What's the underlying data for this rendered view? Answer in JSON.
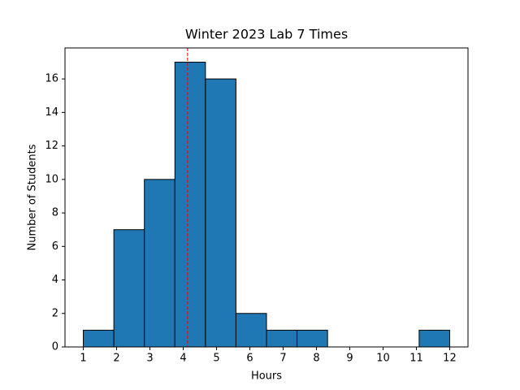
{
  "chart_data": {
    "type": "histogram",
    "title": "Winter 2023 Lab 7 Times",
    "xlabel": "Hours",
    "ylabel": "Number of Students",
    "bins": [
      1,
      1.9167,
      2.8333,
      3.75,
      4.6667,
      5.5833,
      6.5,
      7.4167,
      8.3333,
      9.25,
      10.1667,
      11.0833,
      12
    ],
    "values": [
      1,
      7,
      10,
      17,
      16,
      2,
      1,
      1,
      0,
      0,
      0,
      1
    ],
    "color": "#1f77b4",
    "edgecolor": "#000000",
    "vline": {
      "value": 4.13,
      "color": "#ff0000"
    },
    "xlim": [
      0.45,
      12.55
    ],
    "ylim": [
      0,
      17.85
    ],
    "xticks": [
      1,
      2,
      3,
      4,
      5,
      6,
      7,
      8,
      9,
      10,
      11,
      12
    ],
    "yticks": [
      0,
      2,
      4,
      6,
      8,
      10,
      12,
      14,
      16
    ]
  }
}
